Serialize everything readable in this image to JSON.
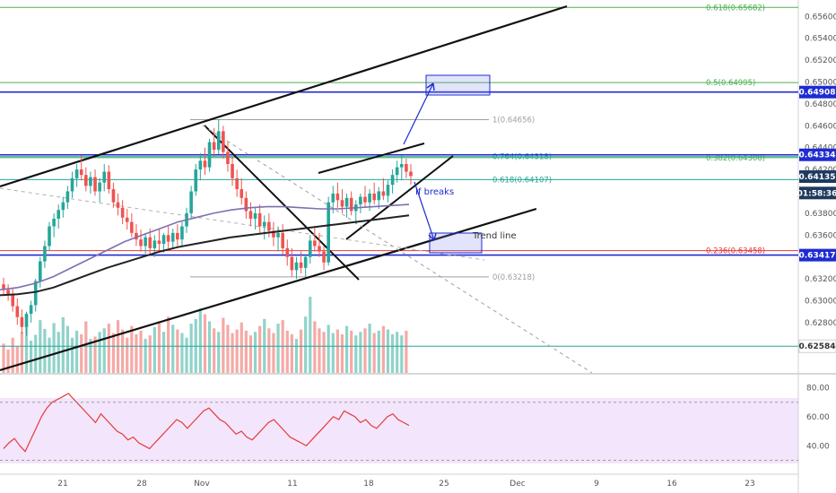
{
  "chart_data": {
    "type": "candlestick",
    "price_axis": {
      "range": [
        0.6234,
        0.6575
      ],
      "ticks": [
        "0.65600",
        "0.65400",
        "0.65200",
        "0.65000",
        "0.64800",
        "0.64600",
        "0.64400",
        "0.64200",
        "0.64000",
        "0.63800",
        "0.63600",
        "0.63400",
        "0.63200",
        "0.63000",
        "0.62800",
        "0.62600"
      ]
    },
    "rsi_axis": {
      "range": [
        21,
        89
      ],
      "ticks": [
        "80.00",
        "60.00",
        "40.00"
      ],
      "band": [
        30,
        70
      ]
    },
    "x_axis": {
      "ticks": [
        "21",
        "28",
        "Nov",
        "11",
        "18",
        "25",
        "Dec",
        "9",
        "16",
        "23"
      ]
    },
    "fib_levels": [
      {
        "label": "0.618(0.65682)",
        "value": 0.65682,
        "color": "#4caf50"
      },
      {
        "label": "0.5(0.64995)",
        "value": 0.64995,
        "color": "#4caf50"
      },
      {
        "label": "1(0.64656)",
        "value": 0.64656,
        "color": "#9e9e9e"
      },
      {
        "label": "0.382(0.64308)",
        "value": 0.64308,
        "color": "#4caf50"
      },
      {
        "label": "0.764(0.64318)",
        "value": 0.64318,
        "color": "#26a69a"
      },
      {
        "label": "0.618(0.64107)",
        "value": 0.64107,
        "color": "#26a69a"
      },
      {
        "label": "0.236(0.63458)",
        "value": 0.63458,
        "color": "#e53935"
      },
      {
        "label": "0(0.63218)",
        "value": 0.63218,
        "color": "#9e9e9e"
      }
    ],
    "price_tags": [
      {
        "text": "0.64908",
        "value": 0.64908,
        "bg": "#1e2bd1",
        "fg": "#ffffff"
      },
      {
        "text": "0.64334",
        "value": 0.64334,
        "bg": "#1e2bd1",
        "fg": "#ffffff"
      },
      {
        "text": "0.64135",
        "value": 0.64135,
        "bg": "#1e3a5f",
        "fg": "#ffffff"
      },
      {
        "text": "01:58:36",
        "value": 0.63985,
        "bg": "#1e3a5f",
        "fg": "#ffffff"
      },
      {
        "text": "0.63417",
        "value": 0.63417,
        "bg": "#1e2bd1",
        "fg": "#ffffff"
      },
      {
        "text": "0.62584",
        "value": 0.62584,
        "bg": "#ffffff",
        "fg": "#333333"
      }
    ],
    "horizontal_lines": [
      {
        "value": 0.64908,
        "color": "#1e2bd1"
      },
      {
        "value": 0.64334,
        "color": "#1e2bd1"
      },
      {
        "value": 0.63417,
        "color": "#1e2bd1"
      },
      {
        "value": 0.62584,
        "color": "#26a69a"
      }
    ],
    "annotations": [
      {
        "text": "If breaks",
        "color": "#1e2bd1"
      },
      {
        "text": "Trend line",
        "color": "#333333"
      }
    ],
    "candles": [
      [
        0.6315,
        0.6321,
        0.6305,
        0.631
      ],
      [
        0.631,
        0.6315,
        0.63,
        0.6306
      ],
      [
        0.6306,
        0.6312,
        0.629,
        0.6295
      ],
      [
        0.6295,
        0.6302,
        0.6278,
        0.6285
      ],
      [
        0.6285,
        0.6292,
        0.627,
        0.6276
      ],
      [
        0.6276,
        0.629,
        0.6268,
        0.6288
      ],
      [
        0.6288,
        0.63,
        0.628,
        0.6296
      ],
      [
        0.6296,
        0.632,
        0.629,
        0.6318
      ],
      [
        0.6318,
        0.634,
        0.6312,
        0.6336
      ],
      [
        0.6336,
        0.6355,
        0.633,
        0.635
      ],
      [
        0.635,
        0.6372,
        0.6346,
        0.6368
      ],
      [
        0.6368,
        0.638,
        0.6358,
        0.6375
      ],
      [
        0.6375,
        0.6388,
        0.6366,
        0.6383
      ],
      [
        0.6383,
        0.6395,
        0.6376,
        0.639
      ],
      [
        0.639,
        0.6405,
        0.6384,
        0.64
      ],
      [
        0.64,
        0.6418,
        0.6394,
        0.6412
      ],
      [
        0.6412,
        0.6425,
        0.6404,
        0.642
      ],
      [
        0.642,
        0.6433,
        0.641,
        0.6415
      ],
      [
        0.6415,
        0.6422,
        0.64,
        0.6405
      ],
      [
        0.6405,
        0.6418,
        0.6398,
        0.6413
      ],
      [
        0.6413,
        0.642,
        0.6396,
        0.64
      ],
      [
        0.64,
        0.6412,
        0.639,
        0.6408
      ],
      [
        0.6408,
        0.6425,
        0.64,
        0.6418
      ],
      [
        0.6418,
        0.6424,
        0.6398,
        0.6402
      ],
      [
        0.6402,
        0.6408,
        0.6385,
        0.639
      ],
      [
        0.639,
        0.6398,
        0.6378,
        0.6385
      ],
      [
        0.6385,
        0.6392,
        0.637,
        0.6376
      ],
      [
        0.6376,
        0.6384,
        0.6365,
        0.6372
      ],
      [
        0.6372,
        0.638,
        0.6358,
        0.6362
      ],
      [
        0.6362,
        0.637,
        0.635,
        0.6356
      ],
      [
        0.6356,
        0.6365,
        0.6345,
        0.635
      ],
      [
        0.635,
        0.6362,
        0.6343,
        0.6358
      ],
      [
        0.6358,
        0.6366,
        0.6342,
        0.6348
      ],
      [
        0.6348,
        0.636,
        0.634,
        0.6355
      ],
      [
        0.6355,
        0.6365,
        0.6346,
        0.6352
      ],
      [
        0.6352,
        0.6362,
        0.6344,
        0.636
      ],
      [
        0.636,
        0.6368,
        0.6348,
        0.6354
      ],
      [
        0.6354,
        0.6366,
        0.6347,
        0.6362
      ],
      [
        0.6362,
        0.637,
        0.635,
        0.6356
      ],
      [
        0.6356,
        0.6372,
        0.635,
        0.6368
      ],
      [
        0.6368,
        0.6385,
        0.6362,
        0.638
      ],
      [
        0.638,
        0.6405,
        0.6375,
        0.64
      ],
      [
        0.64,
        0.6425,
        0.6396,
        0.642
      ],
      [
        0.642,
        0.6435,
        0.641,
        0.6428
      ],
      [
        0.6428,
        0.644,
        0.6415,
        0.6422
      ],
      [
        0.6422,
        0.6448,
        0.6418,
        0.6445
      ],
      [
        0.6445,
        0.6458,
        0.6432,
        0.6438
      ],
      [
        0.6438,
        0.6466,
        0.6434,
        0.6455
      ],
      [
        0.6455,
        0.646,
        0.643,
        0.6436
      ],
      [
        0.6436,
        0.6445,
        0.6418,
        0.6425
      ],
      [
        0.6425,
        0.6432,
        0.6405,
        0.6412
      ],
      [
        0.6412,
        0.642,
        0.6395,
        0.6402
      ],
      [
        0.6402,
        0.6412,
        0.6388,
        0.6394
      ],
      [
        0.6394,
        0.64,
        0.6375,
        0.6382
      ],
      [
        0.6382,
        0.639,
        0.6368,
        0.6375
      ],
      [
        0.6375,
        0.6385,
        0.6365,
        0.638
      ],
      [
        0.638,
        0.6388,
        0.6362,
        0.6368
      ],
      [
        0.6368,
        0.6378,
        0.6356,
        0.6372
      ],
      [
        0.6372,
        0.638,
        0.6358,
        0.6364
      ],
      [
        0.6364,
        0.6372,
        0.635,
        0.6358
      ],
      [
        0.6358,
        0.6368,
        0.6345,
        0.6362
      ],
      [
        0.6362,
        0.637,
        0.6342,
        0.6348
      ],
      [
        0.6348,
        0.6356,
        0.6332,
        0.634
      ],
      [
        0.634,
        0.6348,
        0.6322,
        0.6328
      ],
      [
        0.6328,
        0.634,
        0.632,
        0.6335
      ],
      [
        0.6335,
        0.6345,
        0.6325,
        0.633
      ],
      [
        0.633,
        0.6342,
        0.6322,
        0.634
      ],
      [
        0.634,
        0.636,
        0.6334,
        0.6355
      ],
      [
        0.6355,
        0.6368,
        0.6345,
        0.635
      ],
      [
        0.635,
        0.6362,
        0.634,
        0.6345
      ],
      [
        0.6345,
        0.635,
        0.6328,
        0.6335
      ],
      [
        0.6335,
        0.6395,
        0.6332,
        0.639
      ],
      [
        0.639,
        0.6405,
        0.638,
        0.6398
      ],
      [
        0.6398,
        0.6408,
        0.6385,
        0.6392
      ],
      [
        0.6392,
        0.6402,
        0.638,
        0.6386
      ],
      [
        0.6386,
        0.6398,
        0.6376,
        0.6394
      ],
      [
        0.6394,
        0.64,
        0.6378,
        0.6382
      ],
      [
        0.6382,
        0.6392,
        0.637,
        0.6388
      ],
      [
        0.6388,
        0.6398,
        0.638,
        0.6395
      ],
      [
        0.6395,
        0.6405,
        0.6386,
        0.639
      ],
      [
        0.639,
        0.6402,
        0.6382,
        0.6398
      ],
      [
        0.6398,
        0.6408,
        0.6388,
        0.6392
      ],
      [
        0.6392,
        0.6404,
        0.6384,
        0.64
      ],
      [
        0.64,
        0.6412,
        0.6392,
        0.6396
      ],
      [
        0.6396,
        0.641,
        0.639,
        0.6406
      ],
      [
        0.6406,
        0.642,
        0.6398,
        0.6415
      ],
      [
        0.6415,
        0.6428,
        0.6408,
        0.6422
      ],
      [
        0.6422,
        0.6433,
        0.641,
        0.6425
      ],
      [
        0.6425,
        0.643,
        0.6412,
        0.6418
      ],
      [
        0.6418,
        0.6425,
        0.6406,
        0.6414
      ]
    ],
    "ma_fast": [
      0.631,
      0.6312,
      0.6316,
      0.6322,
      0.633,
      0.6338,
      0.6346,
      0.6354,
      0.636,
      0.6366,
      0.6372,
      0.6376,
      0.638,
      0.6383,
      0.6385,
      0.6386,
      0.6386,
      0.6385,
      0.6384,
      0.6384,
      0.6385,
      0.6386,
      0.6387,
      0.6388
    ],
    "ma_slow": [
      0.6305,
      0.6306,
      0.6308,
      0.6312,
      0.6318,
      0.6324,
      0.633,
      0.6335,
      0.634,
      0.6345,
      0.6349,
      0.6352,
      0.6355,
      0.6358,
      0.636,
      0.6362,
      0.6364,
      0.6366,
      0.6368,
      0.637,
      0.6372,
      0.6374,
      0.6376,
      0.6378
    ],
    "volume": [
      50,
      40,
      60,
      45,
      70,
      80,
      55,
      65,
      90,
      75,
      60,
      85,
      70,
      95,
      80,
      60,
      72,
      66,
      88,
      58,
      62,
      70,
      76,
      84,
      68,
      90,
      74,
      60,
      80,
      66,
      72,
      58,
      64,
      78,
      88,
      70,
      96,
      82,
      74,
      68,
      60,
      84,
      92,
      110,
      100,
      88,
      76,
      70,
      94,
      82,
      68,
      74,
      86,
      72,
      64,
      70,
      80,
      92,
      76,
      68,
      84,
      90,
      72,
      66,
      58,
      74,
      96,
      130,
      88,
      76,
      70,
      82,
      68,
      74,
      66,
      80,
      72,
      64,
      70,
      76,
      84,
      68,
      72,
      80,
      74,
      66,
      70,
      64,
      72
    ],
    "rsi": [
      38,
      42,
      45,
      40,
      36,
      44,
      52,
      60,
      66,
      70,
      72,
      74,
      76,
      72,
      68,
      64,
      60,
      56,
      62,
      58,
      54,
      50,
      48,
      44,
      46,
      42,
      40,
      38,
      42,
      46,
      50,
      54,
      58,
      56,
      52,
      56,
      60,
      64,
      66,
      62,
      58,
      56,
      52,
      48,
      50,
      46,
      44,
      48,
      52,
      56,
      58,
      54,
      50,
      46,
      44,
      42,
      40,
      44,
      48,
      52,
      56,
      60,
      58,
      64,
      62,
      60,
      56,
      58,
      54,
      52,
      56,
      60,
      62,
      58,
      56,
      54
    ]
  }
}
